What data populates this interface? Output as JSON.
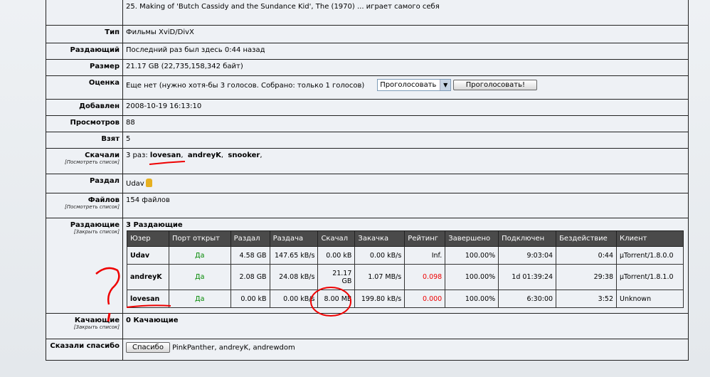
{
  "top_text": "25. Making of 'Butch Cassidy and the Sundance Kid', The (1970)  ... играет самого себя",
  "rows": {
    "type": {
      "label": "Тип",
      "value": "Фильмы XviD/DivX"
    },
    "seeder": {
      "label": "Раздающий",
      "value": "Последний раз был здесь 0:44 назад"
    },
    "size": {
      "label": "Размер",
      "value": "21.17 GB (22,735,158,342 байт)"
    },
    "rating": {
      "label": "Оценка",
      "value": "Еще нет (нужно хотя-бы 3 голосов. Собрано: только 1 голосов)",
      "select": "Проголосовать",
      "button": "Проголосовать!"
    },
    "added": {
      "label": "Добавлен",
      "value": "2008-10-19 16:13:10"
    },
    "views": {
      "label": "Просмотров",
      "value": "88"
    },
    "taken": {
      "label": "Взят",
      "value": "5"
    },
    "downloaded": {
      "label": "Скачали",
      "sub": "[Посмотреть список]",
      "prefix": "3 раз:",
      "users": [
        "lovesan",
        "andreyK",
        "snooker"
      ]
    },
    "uploader": {
      "label": "Раздал",
      "value": "Udav"
    },
    "files": {
      "label": "Файлов",
      "sub": "[Посмотреть список]",
      "value": "154 файлов"
    },
    "seeders": {
      "label": "Раздающие",
      "sub": "[Закрыть список]",
      "title": "3 Раздающие"
    },
    "leechers": {
      "label": "Качающие",
      "sub": "[Закрыть список]",
      "title": "0 Качающие"
    },
    "thanks": {
      "label": "Сказали спасибо",
      "button": "Спасибо",
      "value": "PinkPanther, andreyK, andrewdom"
    }
  },
  "peers": {
    "headers": [
      "Юзер",
      "Порт открыт",
      "Раздал",
      "Раздача",
      "Скачал",
      "Закачка",
      "Рейтинг",
      "Завершено",
      "Подключен",
      "Бездействие",
      "Клиент"
    ],
    "rows": [
      [
        "Udav",
        "Да",
        "4.58 GB",
        "147.65 kB/s",
        "0.00 kB",
        "0.00 kB/s",
        "Inf.",
        "100.00%",
        "9:03:04",
        "0:44",
        "µTorrent/1.8.0.0"
      ],
      [
        "andreyK",
        "Да",
        "2.08 GB",
        "24.08 kB/s",
        "21.17 GB",
        "1.07 MB/s",
        "0.098",
        "100.00%",
        "1d 01:39:24",
        "29:38",
        "µTorrent/1.8.1.0"
      ],
      [
        "lovesan",
        "Да",
        "0.00 kB",
        "0.00 kB/s",
        "8.00 MB",
        "199.80 kB/s",
        "0.000",
        "100.00%",
        "6:30:00",
        "3:52",
        "Unknown"
      ]
    ]
  },
  "colors": {
    "annotation": "#e00000",
    "header_bg": "#4a4a4a",
    "yes": "#008800",
    "bad_ratio": "#ee0000"
  }
}
